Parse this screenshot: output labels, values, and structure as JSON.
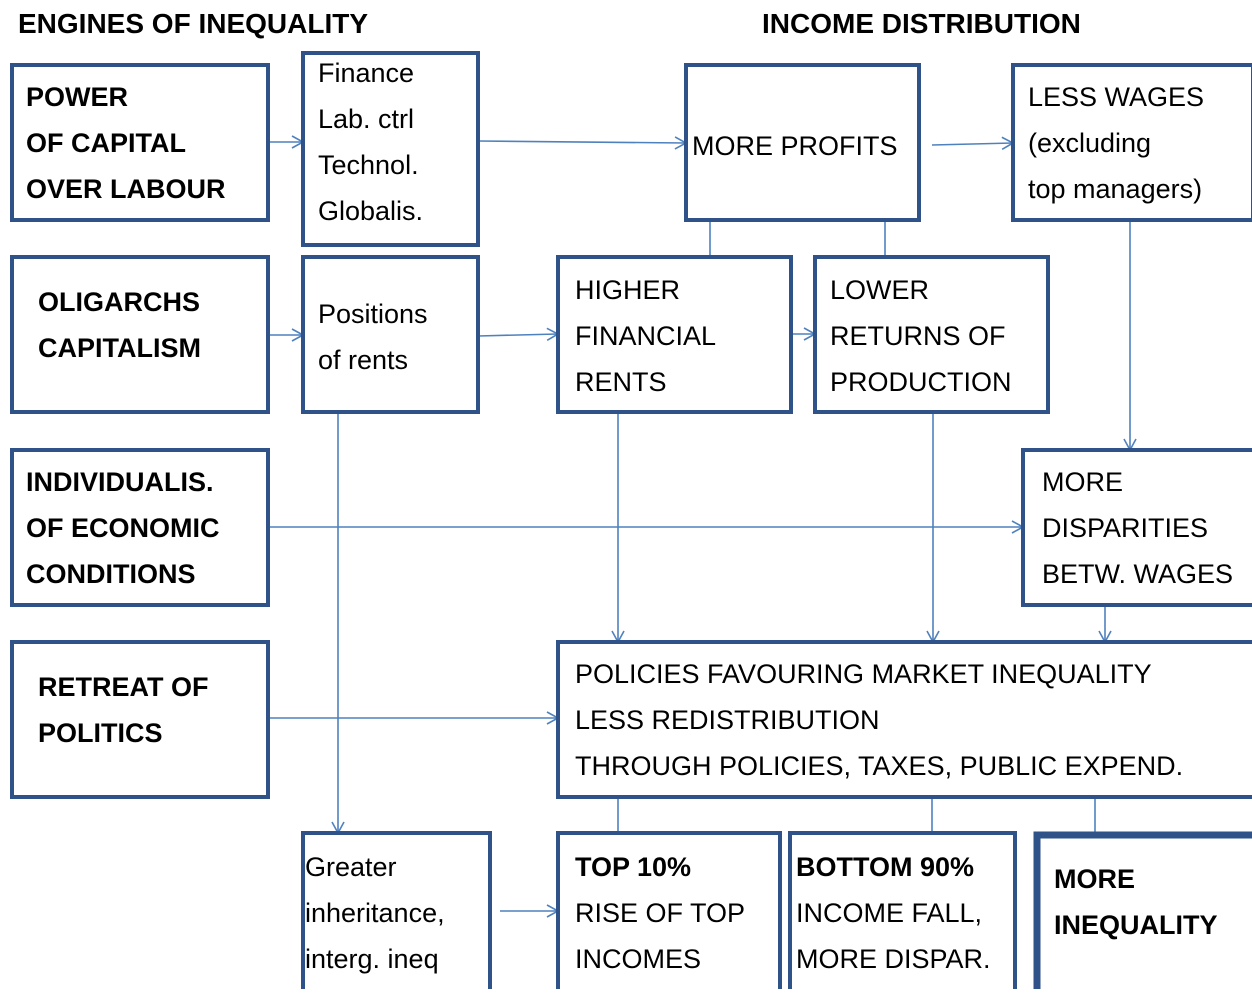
{
  "header": {
    "left_title": "ENGINES OF INEQUALITY",
    "right_title": "INCOME DISTRIBUTION"
  },
  "nodes": [
    {
      "bold_lines": [
        "POWER",
        "OF CAPITAL",
        "OVER LABOUR"
      ]
    },
    {
      "lines": [
        "Finance",
        "Lab. ctrl",
        "Technol.",
        "Globalis."
      ]
    },
    {
      "lines": [
        "MORE PROFITS"
      ]
    },
    {
      "lines": [
        "LESS WAGES",
        "(excluding",
        "top managers)"
      ]
    },
    {
      "bold_lines": [
        "OLIGARCHS",
        "CAPITALISM"
      ]
    },
    {
      "lines": [
        "Positions",
        "of rents"
      ]
    },
    {
      "lines": [
        "HIGHER",
        "FINANCIAL",
        "RENTS"
      ]
    },
    {
      "lines": [
        "LOWER",
        "RETURNS OF",
        "PRODUCTION"
      ]
    },
    {
      "bold_lines": [
        "INDIVIDUALIS.",
        "OF ECONOMIC",
        "CONDITIONS"
      ]
    },
    {
      "lines": [
        "MORE",
        "DISPARITIES",
        "BETW. WAGES"
      ]
    },
    {
      "bold_lines": [
        "RETREAT OF",
        "POLITICS"
      ]
    },
    {
      "lines": [
        "POLICIES FAVOURING MARKET INEQUALITY",
        "LESS REDISTRIBUTION",
        "THROUGH POLICIES, TAXES, PUBLIC  EXPEND."
      ]
    },
    {
      "lines": [
        "Greater",
        "inheritance,",
        "interg. ineq"
      ]
    },
    {
      "bold_lines": [
        "TOP 10%"
      ],
      "lines": [
        "RISE OF TOP",
        "INCOMES"
      ]
    },
    {
      "bold_lines": [
        "BOTTOM 90%"
      ],
      "lines": [
        "INCOME FALL,",
        "MORE DISPAR."
      ]
    },
    {
      "bold_lines": [
        "MORE",
        "INEQUALITY"
      ]
    }
  ]
}
